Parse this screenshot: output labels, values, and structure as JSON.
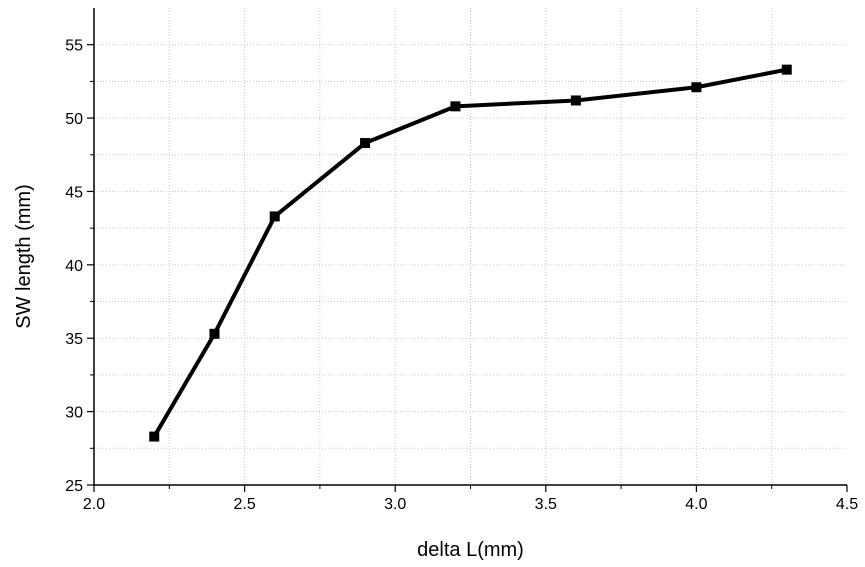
{
  "chart_data": {
    "type": "line",
    "title": "",
    "xlabel": "delta L(mm)",
    "ylabel": "SW length (mm)",
    "xlim": [
      2.0,
      4.5
    ],
    "ylim": [
      25,
      57.5
    ],
    "x_ticks": [
      2.0,
      2.5,
      3.0,
      3.5,
      4.0,
      4.5
    ],
    "x_tick_labels": [
      "2.0",
      "2.5",
      "3.0",
      "3.5",
      "4.0",
      "4.5"
    ],
    "y_ticks": [
      25,
      30,
      35,
      40,
      45,
      50,
      55
    ],
    "y_tick_labels": [
      "25",
      "30",
      "35",
      "40",
      "45",
      "50",
      "55"
    ],
    "grid": true,
    "marker": "square",
    "line_color": "#000000",
    "grid_color": "#c8c8c8",
    "series": [
      {
        "x": [
          2.2,
          2.4,
          2.6,
          2.9,
          3.2,
          3.6,
          4.0,
          4.3
        ],
        "y": [
          28.3,
          35.3,
          43.3,
          48.3,
          50.8,
          51.2,
          52.1,
          53.3
        ]
      }
    ]
  }
}
